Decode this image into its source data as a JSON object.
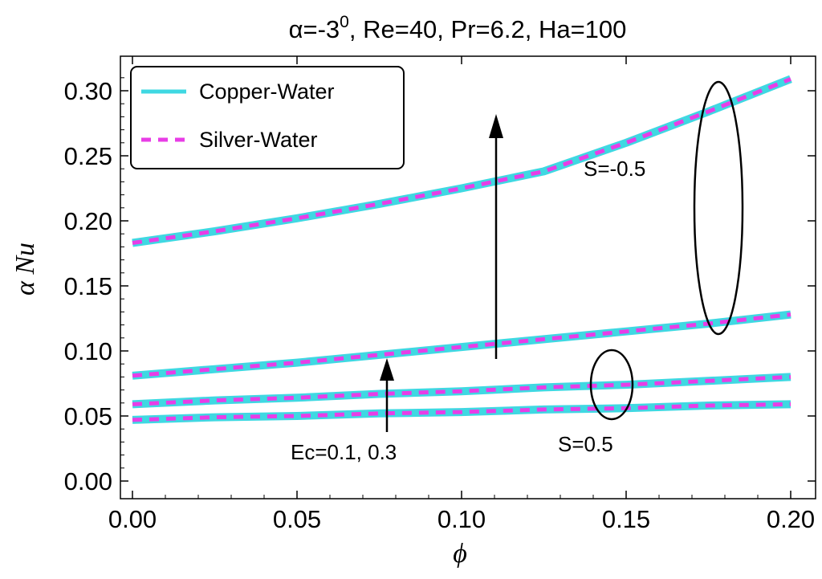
{
  "chart_data": {
    "type": "line",
    "title": "α=-3⁰, Re=40, Pr=6.2, Ha=100",
    "xlabel": "ϕ",
    "ylabel": "α Nu",
    "xlim": [
      0.0,
      0.2
    ],
    "ylim": [
      0.0,
      0.32
    ],
    "x_ticks": [
      0.0,
      0.05,
      0.1,
      0.15,
      0.2
    ],
    "x_tick_labels": [
      "0.00",
      "0.05",
      "0.10",
      "0.15",
      "0.20"
    ],
    "y_ticks": [
      0.0,
      0.05,
      0.1,
      0.15,
      0.2,
      0.25,
      0.3
    ],
    "y_tick_labels": [
      "0.00",
      "0.05",
      "0.10",
      "0.15",
      "0.20",
      "0.25",
      "0.30"
    ],
    "x": [
      0.0,
      0.025,
      0.05,
      0.075,
      0.1,
      0.125,
      0.15,
      0.175,
      0.2
    ],
    "curves": [
      {
        "case": "S=-0.5, Ec=0.3",
        "values": [
          0.183,
          0.192,
          0.202,
          0.213,
          0.225,
          0.238,
          0.26,
          0.284,
          0.309
        ]
      },
      {
        "case": "S=-0.5, Ec=0.1",
        "values": [
          0.081,
          0.086,
          0.091,
          0.097,
          0.103,
          0.109,
          0.115,
          0.121,
          0.128
        ]
      },
      {
        "case": "S=0.5, Ec=0.3",
        "values": [
          0.059,
          0.062,
          0.064,
          0.067,
          0.069,
          0.072,
          0.074,
          0.077,
          0.08
        ]
      },
      {
        "case": "S=0.5, Ec=0.1",
        "values": [
          0.047,
          0.049,
          0.05,
          0.052,
          0.053,
          0.055,
          0.056,
          0.058,
          0.059
        ]
      }
    ],
    "series": [
      {
        "name": "Copper-Water",
        "style": "solid",
        "color": "#3fd8e2"
      },
      {
        "name": "Silver-Water",
        "style": "dashed",
        "color": "#e83de6"
      }
    ],
    "legend_position": "top-left",
    "annotations": {
      "ec_label": "Ec=0.1, 0.3",
      "s_neg_label": "S=-0.5",
      "s_pos_label": "S=0.5"
    }
  }
}
